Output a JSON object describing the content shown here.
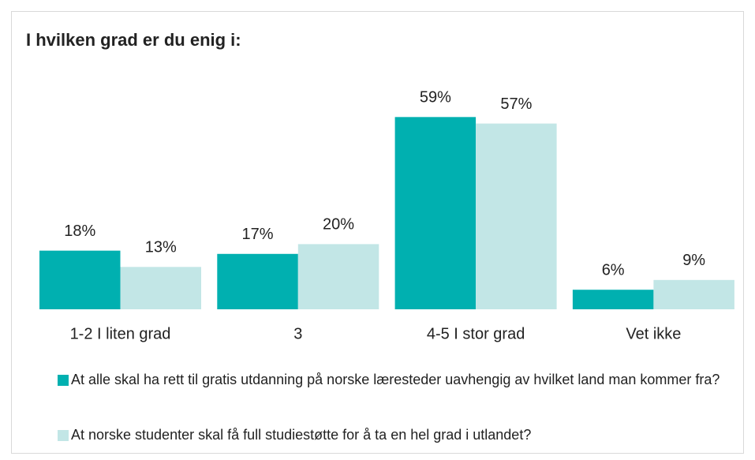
{
  "chart_data": {
    "type": "bar",
    "title": "I hvilken grad er du enig i:",
    "categories": [
      "1-2 I liten grad",
      "3",
      "4-5 I stor grad",
      "Vet ikke"
    ],
    "series": [
      {
        "name": "At alle skal ha rett til gratis utdanning på norske læresteder uavhengig av hvilket land man kommer fra?",
        "color": "#00b0b0",
        "values": [
          18,
          17,
          59,
          6
        ],
        "value_labels": [
          "18%",
          "17%",
          "59%",
          "6%"
        ]
      },
      {
        "name": "At norske studenter skal få full studiestøtte for å ta en hel grad i utlandet?",
        "color": "#c2e6e6",
        "values": [
          13,
          20,
          57,
          9
        ],
        "value_labels": [
          "13%",
          "20%",
          "57%",
          "9%"
        ]
      }
    ]
  }
}
